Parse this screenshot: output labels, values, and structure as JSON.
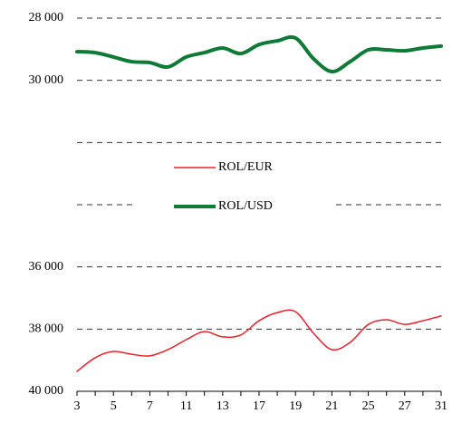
{
  "chart_data": {
    "type": "line",
    "categories": [
      3,
      null,
      5,
      null,
      7,
      null,
      11,
      null,
      13,
      null,
      17,
      null,
      19,
      null,
      21,
      null,
      25,
      null,
      27,
      null,
      31
    ],
    "series": [
      {
        "name": "ROL/EUR",
        "color": "#e8202a",
        "width": 1.5,
        "values": [
          39360,
          38920,
          38720,
          38810,
          38860,
          38660,
          38340,
          38080,
          38250,
          38190,
          37730,
          37470,
          37440,
          38140,
          38660,
          38430,
          37850,
          37700,
          37850,
          37730,
          37580
        ]
      },
      {
        "name": "ROL/USD",
        "color": "#0f7a35",
        "width": 4,
        "values": [
          29080,
          29110,
          29250,
          29400,
          29430,
          29570,
          29250,
          29110,
          28960,
          29140,
          28850,
          28730,
          28640,
          29310,
          29720,
          29400,
          29020,
          29020,
          29050,
          28960,
          28900
        ]
      }
    ],
    "ylim": [
      28000,
      40000
    ],
    "y_inverted": true,
    "yticks": [
      {
        "value": 28000,
        "label": "28 000"
      },
      {
        "value": 30000,
        "label": "30 000"
      },
      {
        "value": 36000,
        "label": "36 000"
      },
      {
        "value": 38000,
        "label": "38 000"
      },
      {
        "value": 40000,
        "label": "40 000"
      }
    ],
    "gridlines": [
      28000,
      30000,
      32000,
      34000,
      36000,
      38000
    ],
    "grid": true
  }
}
